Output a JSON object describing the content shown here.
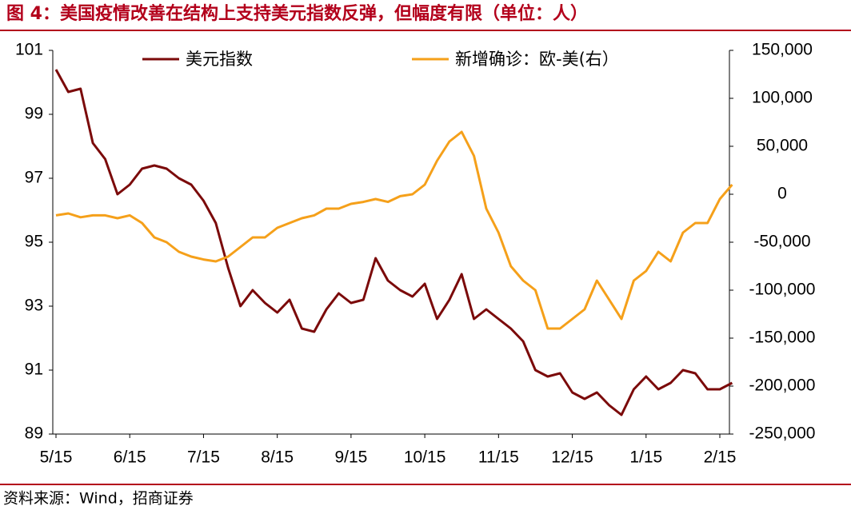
{
  "chart_data": {
    "type": "line",
    "title": "图 4：美国疫情改善在结构上支持美元指数反弹，但幅度有限（单位：人）",
    "source": "资料来源：Wind，招商证券",
    "categories": [
      "5/15",
      null,
      null,
      null,
      null,
      null,
      "6/15",
      null,
      null,
      null,
      null,
      null,
      "7/15",
      null,
      null,
      null,
      null,
      null,
      "8/15",
      null,
      null,
      null,
      null,
      null,
      "9/15",
      null,
      null,
      null,
      null,
      null,
      "10/15",
      null,
      null,
      null,
      null,
      null,
      "11/15",
      null,
      null,
      null,
      null,
      null,
      "12/15",
      null,
      null,
      null,
      null,
      null,
      "1/15",
      null,
      null,
      null,
      null,
      null,
      "2/15",
      null
    ],
    "ylim": [
      89,
      101
    ],
    "yticks": [
      89,
      91,
      93,
      95,
      97,
      99,
      101
    ],
    "y2lim": [
      -250000,
      150000
    ],
    "y2ticks": [
      {
        "value": -250000,
        "label": "-250,000"
      },
      {
        "value": -200000,
        "label": "-200,000"
      },
      {
        "value": -150000,
        "label": "-150,000"
      },
      {
        "value": -100000,
        "label": "-100,000"
      },
      {
        "value": -50000,
        "label": "-50,000"
      },
      0,
      {
        "value": 50000,
        "label": "50,000"
      },
      {
        "value": 100000,
        "label": "100,000"
      },
      {
        "value": 150000,
        "label": "150,000"
      }
    ],
    "legend": "top",
    "series": [
      {
        "name": "美元指数",
        "color": "#7b0a0a",
        "values": [
          100.4,
          99.7,
          99.8,
          98.1,
          97.6,
          96.5,
          96.8,
          97.3,
          97.4,
          97.3,
          97.0,
          96.8,
          96.3,
          95.6,
          94.2,
          93.0,
          93.5,
          93.1,
          92.8,
          93.2,
          92.3,
          92.2,
          92.9,
          93.4,
          93.1,
          93.2,
          94.5,
          93.8,
          93.5,
          93.3,
          93.7,
          92.6,
          93.2,
          94.0,
          92.6,
          92.9,
          92.6,
          92.3,
          91.9,
          91.0,
          90.8,
          90.9,
          90.3,
          90.1,
          90.3,
          89.9,
          89.6,
          90.4,
          90.8,
          90.4,
          90.6,
          91.0,
          90.9,
          90.4,
          90.4,
          90.6
        ]
      },
      {
        "name": "新增确诊：欧-美(右）",
        "color": "#f5a01a",
        "axis": "y2",
        "values": [
          -22000,
          -20000,
          -24000,
          -22000,
          -22000,
          -25000,
          -22000,
          -30000,
          -45000,
          -50000,
          -60000,
          -65000,
          -68000,
          -70000,
          -65000,
          -55000,
          -45000,
          -45000,
          -35000,
          -30000,
          -25000,
          -22000,
          -15000,
          -15000,
          -10000,
          -8000,
          -5000,
          -8000,
          -2000,
          0,
          10000,
          35000,
          55000,
          65000,
          40000,
          -15000,
          -40000,
          -75000,
          -90000,
          -100000,
          -140000,
          -140000,
          -130000,
          -120000,
          -90000,
          -110000,
          -130000,
          -90000,
          -80000,
          -60000,
          -70000,
          -40000,
          -30000,
          -30000,
          -5000,
          10000
        ]
      }
    ]
  }
}
